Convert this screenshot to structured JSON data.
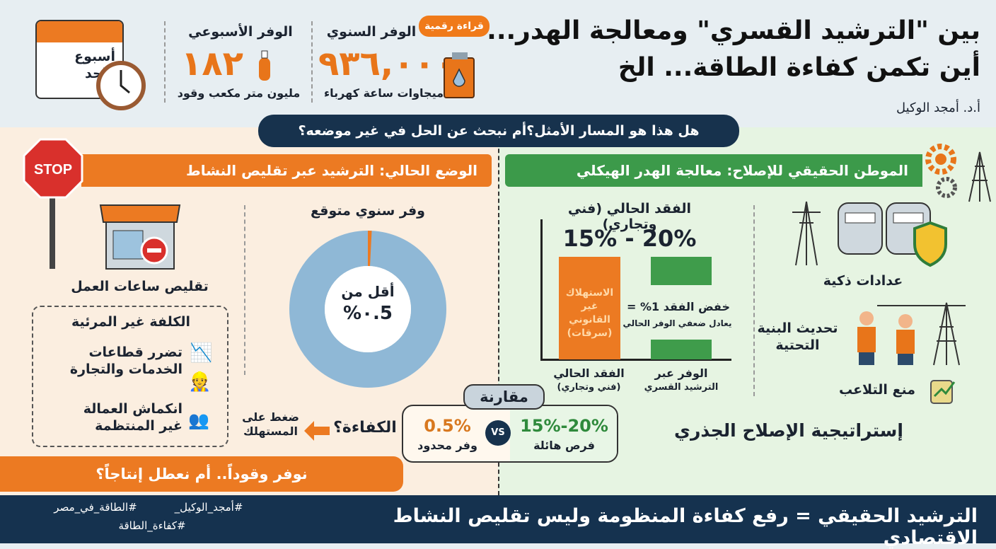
{
  "header": {
    "title_line1": "بين \"الترشيد القسري\" ومعالجة الهدر...",
    "title_line2": "أين تكمن كفاءة الطاقة... الخ",
    "author": "أ.د. أمجد الوكيل",
    "badge": "قراءة رقمية",
    "annual": {
      "label": "الوفر السنوي",
      "value": "٩٣٦,٠٠٠",
      "unit": "ميجاوات ساعة كهرباء"
    },
    "weekly": {
      "label": "الوفر الأسبوعي",
      "value": "١٨٢",
      "unit": "مليون متر مكعب وقود"
    },
    "calendar": {
      "line1": "أسبوع",
      "line2": "واحد"
    }
  },
  "question": "هل هذا هو المسار الأمثل؟أم نبحث عن الحل في غير موضعه؟",
  "left": {
    "stop": "STOP",
    "header": "الوضع الحالي: الترشيد عبر تقليص النشاط",
    "shop_caption": "تقليص ساعات العمل",
    "hidden_cost": {
      "title": "الكلفة غير المرئية",
      "items": [
        {
          "line1": "تضرر قطاعات",
          "line2": "الخدمات والتجارة"
        },
        {
          "line1": "انكماش العمالة",
          "line2": "غير المنتظمة"
        }
      ]
    },
    "donut": {
      "title": "وفر سنوي متوقع",
      "center1": "أقل من",
      "center2": "%٠.5",
      "value_percent": 0.5
    },
    "efficiency": "الكفاءة؟",
    "pressure": {
      "line1": "ضغط على",
      "line2": "المستهلك"
    },
    "bottom_bar": "نوفر وقوداً.. أم نعطل إنتاجاً؟"
  },
  "comparison": {
    "tag": "مقارنة",
    "left_value": "0.5%",
    "left_label": "وفر محدود",
    "vs": "VS",
    "right_value": "15%-20%",
    "right_label": "فرص هائلة"
  },
  "right": {
    "header": "الموطن الحقيقي للإصلاح: معالجة الهدر الهيكلي",
    "chart": {
      "title": "الفقد الحالي (فني وتجاري)",
      "range": "15% - 20%",
      "bar_text": [
        "الاستهلاك",
        "غير",
        "القانوني",
        "(سرقات)"
      ],
      "note1": "خفض الفقد 1% =",
      "note2": "يعادل ضعفي الوفر الحالي",
      "x_labels": [
        {
          "line1": "الفقد الحالي",
          "line2": "(فني وتجاري)"
        },
        {
          "line1": "الوفر عبر",
          "line2": "الترشيد القسري"
        }
      ]
    },
    "features": [
      "عدادات ذكية",
      "تحديث البنية التحتية",
      "منع التلاعب"
    ],
    "strategy": "إستراتيجية الإصلاح الجذري"
  },
  "footer": {
    "main": "الترشيد الحقيقي = رفع كفاءة المنظومة وليس تقليص النشاط الاقتصادي",
    "tag1": "#أمجد_الوكيل_",
    "tag2": "#الطاقة_في_مصر",
    "tag3": "#كفاءة_الطاقة"
  },
  "colors": {
    "orange": "#ec7a22",
    "green": "#3c9a4a",
    "navy": "#15324f",
    "donut": "#8fb8d6"
  }
}
